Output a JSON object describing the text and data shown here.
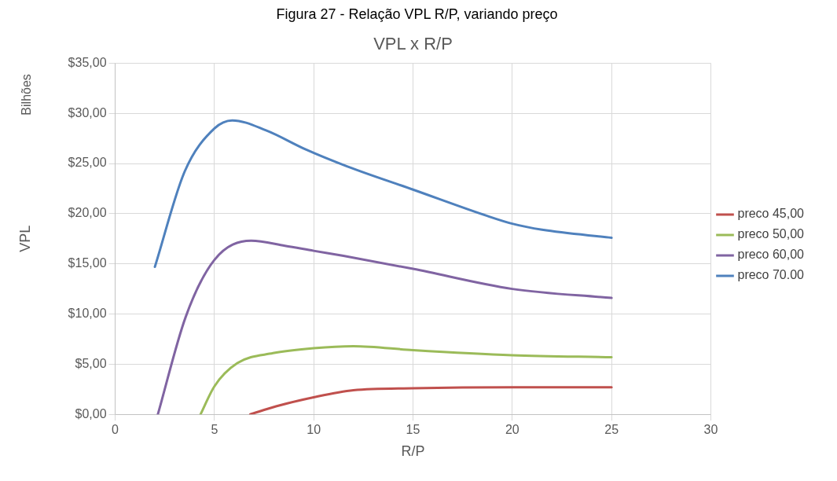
{
  "chart_data": {
    "type": "line",
    "title": "VPL x R/P",
    "xlabel": "R/P",
    "ylabel": "VPL",
    "annotations": [
      "Figura 27 - Relação VPL R/P, variando preço",
      "Bilhões"
    ],
    "xlim": [
      0,
      30
    ],
    "xticks": [
      0,
      5,
      10,
      15,
      20,
      25,
      30
    ],
    "ylim": [
      0,
      35
    ],
    "yticks": [
      {
        "value": 0,
        "label": "$0,00"
      },
      {
        "value": 5,
        "label": "$5,00"
      },
      {
        "value": 10,
        "label": "$10,00"
      },
      {
        "value": 15,
        "label": "$15,00"
      },
      {
        "value": 20,
        "label": "$20,00"
      },
      {
        "value": 25,
        "label": "$25,00"
      },
      {
        "value": 30,
        "label": "$30,00"
      },
      {
        "value": 35,
        "label": "$35,00"
      }
    ],
    "grid": true,
    "legend": "right",
    "marker": "none",
    "line_style": "solid",
    "series": [
      {
        "name": "preco 45,00",
        "color": "#c0504d",
        "x": [
          6.8,
          8.1,
          10,
          12,
          15,
          20,
          25
        ],
        "values": [
          0,
          0.8,
          1.7,
          2.4,
          2.6,
          2.7,
          2.7
        ]
      },
      {
        "name": "preco 50,00",
        "color": "#9bbb59",
        "x": [
          4.3,
          5,
          6.15,
          7.95,
          10,
          12,
          15,
          20,
          25
        ],
        "values": [
          0,
          2.8,
          5.1,
          6.1,
          6.6,
          6.8,
          6.4,
          5.9,
          5.7
        ]
      },
      {
        "name": "preco 60,00",
        "color": "#8064a2",
        "x": [
          2.15,
          3.55,
          5,
          6.85,
          8.55,
          10,
          11.5,
          15,
          20,
          25
        ],
        "values": [
          0,
          9.7,
          15.4,
          17.3,
          16.8,
          16.3,
          15.8,
          14.5,
          12.5,
          11.6
        ]
      },
      {
        "name": "preco 70.00",
        "color": "#4f81bd",
        "x": [
          2,
          3.5,
          5,
          5.9,
          7.6,
          9.6,
          11.7,
          15,
          18.7,
          20,
          21.5,
          25
        ],
        "values": [
          14.7,
          24.2,
          28.5,
          29.3,
          28.3,
          26.4,
          24.7,
          22.4,
          19.8,
          19,
          18.4,
          17.6
        ]
      }
    ]
  }
}
